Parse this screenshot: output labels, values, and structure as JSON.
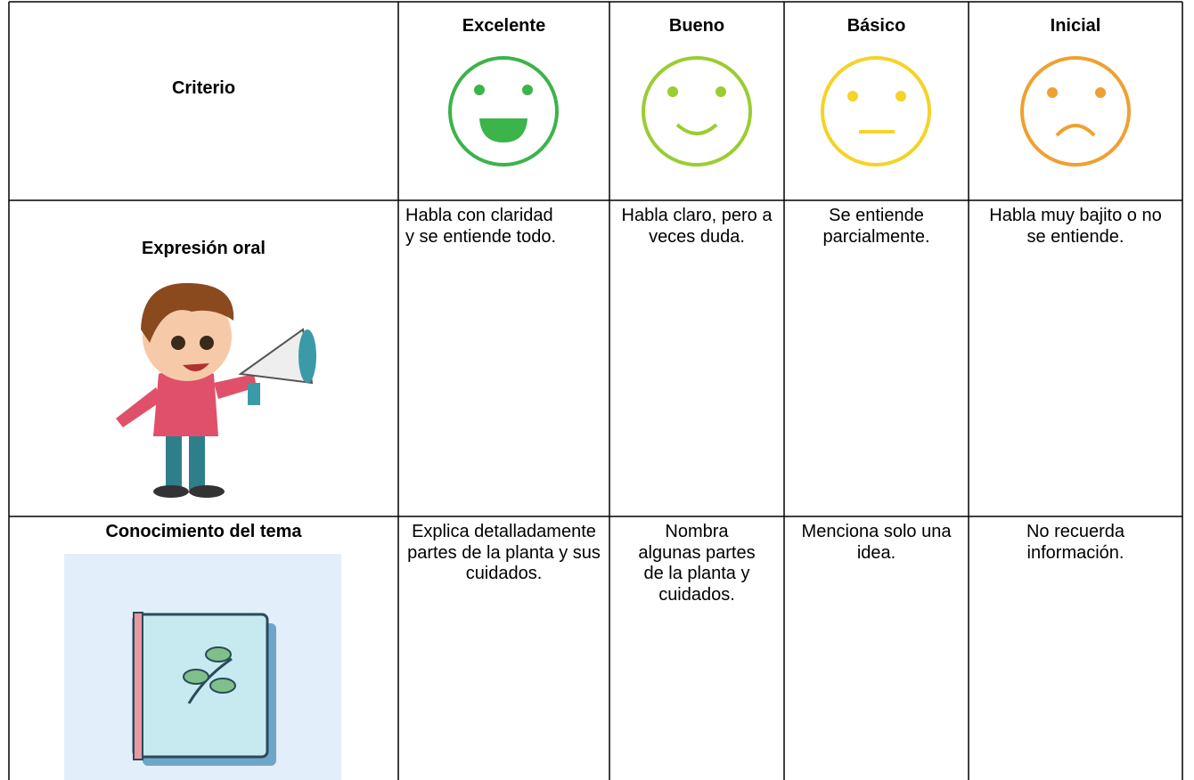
{
  "table": {
    "header": [
      "Criterio",
      "Excelente",
      "Bueno",
      "Básico",
      "Inicial"
    ],
    "rows": [
      [
        "Expresión oral",
        "Habla con claridad y se entiende todo.",
        "Habla claro, pero a veces duda.",
        "Se entiende parcialmente.",
        "Habla muy bajito o no se entiende."
      ],
      [
        "Conocimiento del tema",
        "Explica detalladamente partes de la planta y sus cuidados.",
        "Nombra algunas partes de la planta y cuidados.",
        "Menciona solo una idea.",
        "No recuerda información."
      ]
    ]
  }
}
